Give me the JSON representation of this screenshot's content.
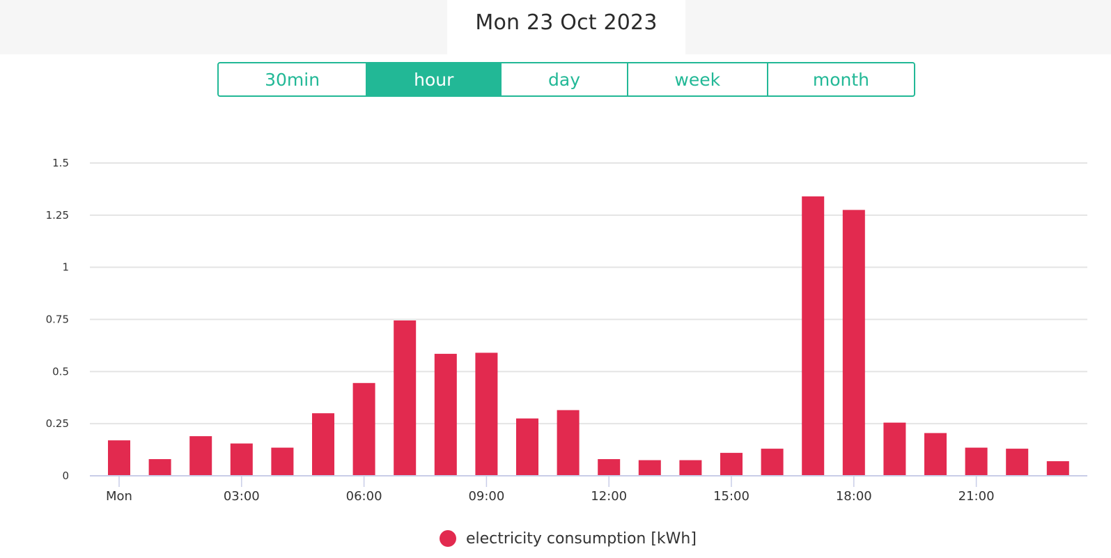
{
  "header": {
    "date": "Mon 23 Oct 2023"
  },
  "tabs": [
    {
      "label": "30min",
      "active": false
    },
    {
      "label": "hour",
      "active": true
    },
    {
      "label": "day",
      "active": false
    },
    {
      "label": "week",
      "active": false
    },
    {
      "label": "month",
      "active": false
    }
  ],
  "colors": {
    "accent": "#22b896",
    "bar": "#e22a4f",
    "grid": "#e4e4e4",
    "axis": "#c9cde8"
  },
  "chart_data": {
    "type": "bar",
    "categories": [
      "00:00",
      "01:00",
      "02:00",
      "03:00",
      "04:00",
      "05:00",
      "06:00",
      "07:00",
      "08:00",
      "09:00",
      "10:00",
      "11:00",
      "12:00",
      "13:00",
      "14:00",
      "15:00",
      "16:00",
      "17:00",
      "18:00",
      "19:00",
      "20:00",
      "21:00",
      "22:00",
      "23:00"
    ],
    "series": [
      {
        "name": "electricity consumption [kWh]",
        "values": [
          0.17,
          0.08,
          0.19,
          0.155,
          0.135,
          0.3,
          0.445,
          0.745,
          0.585,
          0.59,
          0.275,
          0.315,
          0.08,
          0.075,
          0.075,
          0.11,
          0.13,
          1.34,
          1.275,
          0.255,
          0.205,
          0.135,
          0.13,
          0.07
        ]
      }
    ],
    "ylim": [
      0,
      1.5
    ],
    "yticks": [
      {
        "value": 0,
        "label": "0"
      },
      {
        "value": 0.25,
        "label": "0.25"
      },
      {
        "value": 0.5,
        "label": "0.5"
      },
      {
        "value": 0.75,
        "label": "0.75"
      },
      {
        "value": 1,
        "label": "1"
      },
      {
        "value": 1.25,
        "label": "1.25"
      },
      {
        "value": 1.5,
        "label": "1.5"
      }
    ],
    "xticks": [
      {
        "index": 0,
        "label": "Mon"
      },
      {
        "index": 3,
        "label": "03:00"
      },
      {
        "index": 6,
        "label": "06:00"
      },
      {
        "index": 9,
        "label": "09:00"
      },
      {
        "index": 12,
        "label": "12:00"
      },
      {
        "index": 15,
        "label": "15:00"
      },
      {
        "index": 18,
        "label": "18:00"
      },
      {
        "index": 21,
        "label": "21:00"
      }
    ],
    "grid": true,
    "legend_position": "bottom"
  }
}
